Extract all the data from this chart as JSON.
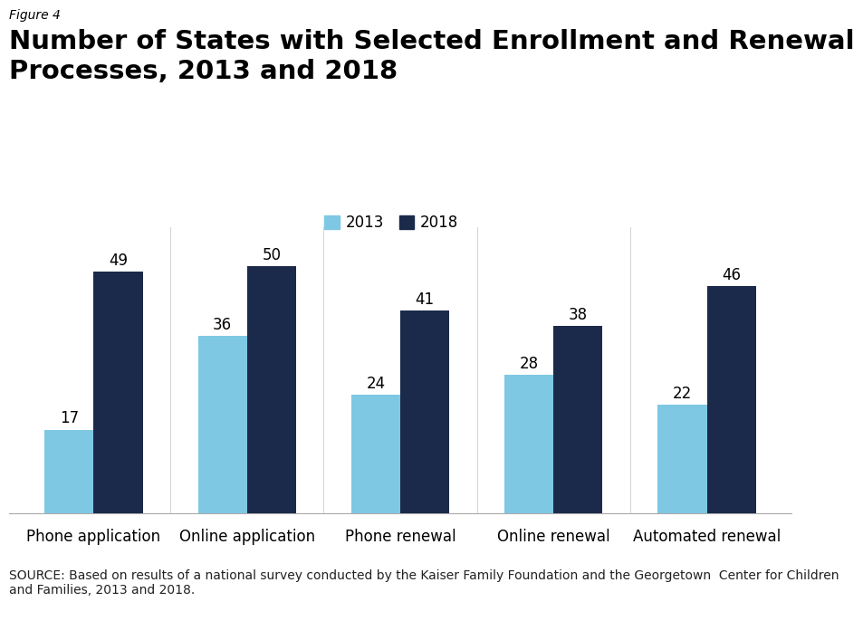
{
  "figure_label": "Figure 4",
  "title": "Number of States with Selected Enrollment and Renewal\nProcesses, 2013 and 2018",
  "categories": [
    "Phone application",
    "Online application",
    "Phone renewal",
    "Online renewal",
    "Automated renewal"
  ],
  "values_2013": [
    17,
    36,
    24,
    28,
    22
  ],
  "values_2018": [
    49,
    50,
    41,
    38,
    46
  ],
  "color_2013": "#7EC8E3",
  "color_2018": "#1B2A4A",
  "legend_labels": [
    "2013",
    "2018"
  ],
  "source_text": "SOURCE: Based on results of a national survey conducted by the Kaiser Family Foundation and the Georgetown  Center for Children\nand Families, 2013 and 2018.",
  "figure_label_fontsize": 10,
  "title_fontsize": 21,
  "tick_fontsize": 12,
  "bar_label_fontsize": 12,
  "legend_fontsize": 12,
  "source_fontsize": 10,
  "bar_width": 0.32,
  "ylim": [
    0,
    58
  ],
  "background_color": "#FFFFFF",
  "logo_color": "#2B4B7E",
  "logo_text_color": "#FFFFFF"
}
